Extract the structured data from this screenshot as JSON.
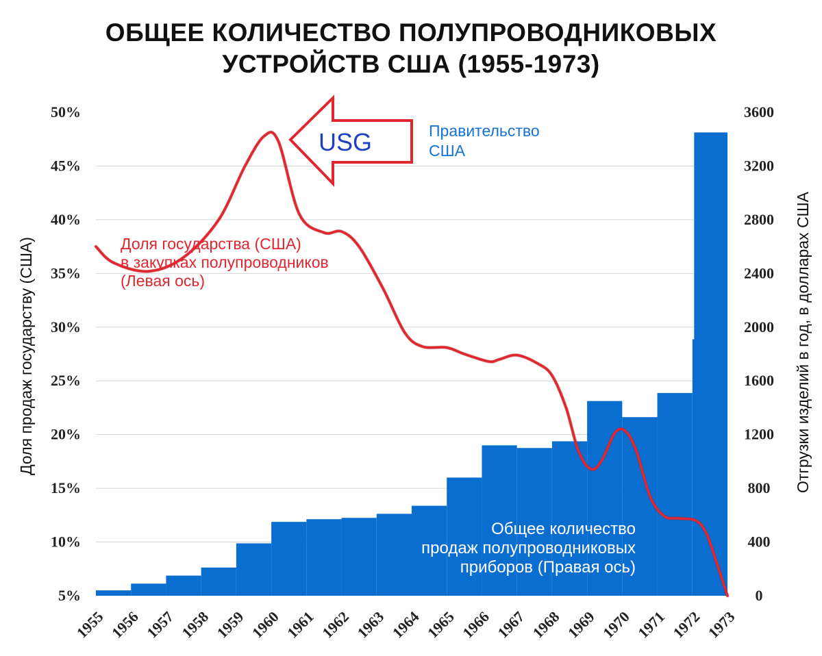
{
  "chart_data": {
    "type": "bar",
    "title_lines": [
      "ОБЩЕЕ КОЛИЧЕСТВО ПОЛУПРОВОДНИКОВЫХ",
      "УСТРОЙСТВ США (1955-1973)"
    ],
    "categories": [
      "1955",
      "1956",
      "1957",
      "1958",
      "1959",
      "1960",
      "1961",
      "1962",
      "1963",
      "1964",
      "1965",
      "1966",
      "1967",
      "1968",
      "1969",
      "1970",
      "1971",
      "1972",
      "1973"
    ],
    "left_axis": {
      "label": "Доля продаж государству (США)",
      "ticks": [
        "5%",
        "10%",
        "15%",
        "20%",
        "25%",
        "30%",
        "35%",
        "40%",
        "45%",
        "50%"
      ],
      "range": [
        5,
        50
      ]
    },
    "right_axis": {
      "label": "Отгрузки изделий в год, в долларах США",
      "ticks": [
        "0",
        "400",
        "800",
        "1200",
        "1600",
        "2000",
        "2400",
        "2800",
        "3200",
        "3600"
      ],
      "range": [
        0,
        3600
      ]
    },
    "series": [
      {
        "name": "Общее количество продаж полупроводниковых приборов (Правая ось)",
        "axis": "right",
        "color": "#0a6ed1",
        "values": [
          40,
          90,
          150,
          210,
          390,
          550,
          570,
          580,
          610,
          670,
          880,
          1120,
          1100,
          1150,
          1450,
          1330,
          1510,
          1910,
          3450
        ]
      },
      {
        "name": "Доля государства (США) в закупках полупроводников (Левая ось)",
        "axis": "left",
        "color": "#e0262f",
        "points": [
          [
            1955,
            37.5
          ],
          [
            1955.5,
            36.0
          ],
          [
            1956.5,
            35.2
          ],
          [
            1957.5,
            36.5
          ],
          [
            1958.5,
            40.0
          ],
          [
            1959.25,
            45.0
          ],
          [
            1959.8,
            47.8
          ],
          [
            1960.2,
            47.3
          ],
          [
            1960.8,
            40.5
          ],
          [
            1961.5,
            38.8
          ],
          [
            1962,
            38.9
          ],
          [
            1962.5,
            37.5
          ],
          [
            1963.2,
            33.5
          ],
          [
            1963.8,
            29.5
          ],
          [
            1964.3,
            28.2
          ],
          [
            1965,
            28.1
          ],
          [
            1965.5,
            27.5
          ],
          [
            1966.2,
            26.8
          ],
          [
            1966.5,
            27.0
          ],
          [
            1967,
            27.4
          ],
          [
            1967.6,
            26.6
          ],
          [
            1968,
            25.5
          ],
          [
            1968.4,
            22.5
          ],
          [
            1968.75,
            18.5
          ],
          [
            1969.1,
            16.8
          ],
          [
            1969.4,
            17.5
          ],
          [
            1969.8,
            20.2
          ],
          [
            1970.1,
            20.3
          ],
          [
            1970.4,
            18.5
          ],
          [
            1970.8,
            14.2
          ],
          [
            1971.2,
            12.4
          ],
          [
            1971.6,
            12.2
          ],
          [
            1972.1,
            12.0
          ],
          [
            1972.4,
            10.8
          ],
          [
            1972.7,
            8.0
          ],
          [
            1973,
            5.0
          ]
        ]
      }
    ],
    "annotations": {
      "usg": "USG",
      "government": [
        "Правительство",
        "США"
      ],
      "share": [
        "Доля государства (США)",
        "в закупках полупроводников",
        "(Левая ось)"
      ],
      "total": [
        "Общее количество",
        "продаж полупроводниковых",
        "приборов (Правая ось)"
      ]
    },
    "colors": {
      "bars": "#0a6ed1",
      "line": "#e0262f",
      "arrow": "#e0262f",
      "usg_text": "#1c3fc4",
      "grid": "#d4d4d4"
    },
    "grid": true
  }
}
